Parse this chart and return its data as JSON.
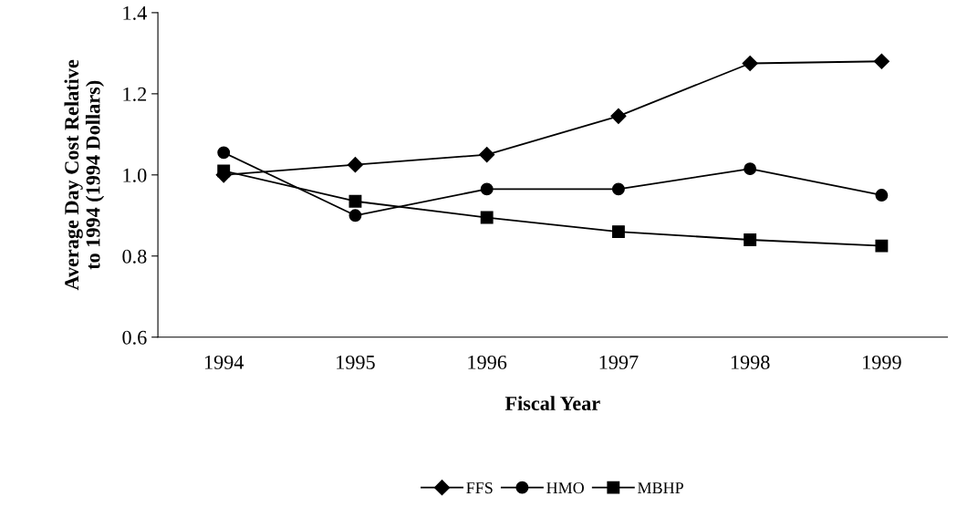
{
  "chart_data": {
    "type": "line",
    "xlabel": "Fiscal Year",
    "ylabel": "Average Day Cost Relative\nto 1994 (1994 Dollars)",
    "categories": [
      "1994",
      "1995",
      "1996",
      "1997",
      "1998",
      "1999"
    ],
    "series": [
      {
        "name": "FFS",
        "color": "#000000",
        "marker": "diamond",
        "values": [
          1.0,
          1.025,
          1.05,
          1.145,
          1.275,
          1.28
        ]
      },
      {
        "name": "HMO",
        "color": "#000000",
        "marker": "circle",
        "values": [
          1.055,
          0.9,
          0.965,
          0.965,
          1.015,
          0.95
        ]
      },
      {
        "name": "MBHP",
        "color": "#000000",
        "marker": "square",
        "values": [
          1.01,
          0.935,
          0.895,
          0.86,
          0.84,
          0.825
        ]
      }
    ],
    "ylim": [
      0.6,
      1.4
    ],
    "yticks": [
      {
        "value": 0.6,
        "label": "0.6"
      },
      {
        "value": 0.8,
        "label": "0.8"
      },
      {
        "value": 1.0,
        "label": "1.0"
      },
      {
        "value": 1.2,
        "label": "1.2"
      },
      {
        "value": 1.4,
        "label": "1.4"
      }
    ],
    "grid": false,
    "legend": "bottom",
    "line_style": "solid"
  }
}
